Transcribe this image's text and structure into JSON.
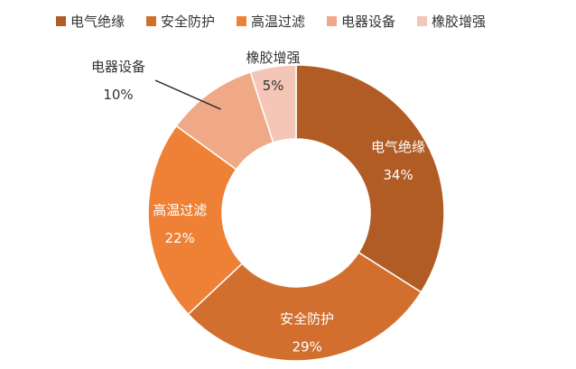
{
  "chart_data": {
    "type": "pie",
    "variant": "donut",
    "title": "",
    "legend_position": "top",
    "categories": [
      "电气绝缘",
      "安全防护",
      "高温过滤",
      "电器设备",
      "橡胶增强"
    ],
    "values": [
      34,
      29,
      22,
      10,
      5
    ],
    "value_labels": [
      "34%",
      "29%",
      "22%",
      "10%",
      "5%"
    ],
    "colors": [
      "#B15C24",
      "#D26F2F",
      "#EE8136",
      "#F0A987",
      "#F4C6B7"
    ],
    "label_colors": [
      "#ffffff",
      "#ffffff",
      "#ffffff",
      "#333333",
      "#333333"
    ],
    "label_outside": [
      false,
      false,
      false,
      true,
      false
    ]
  }
}
